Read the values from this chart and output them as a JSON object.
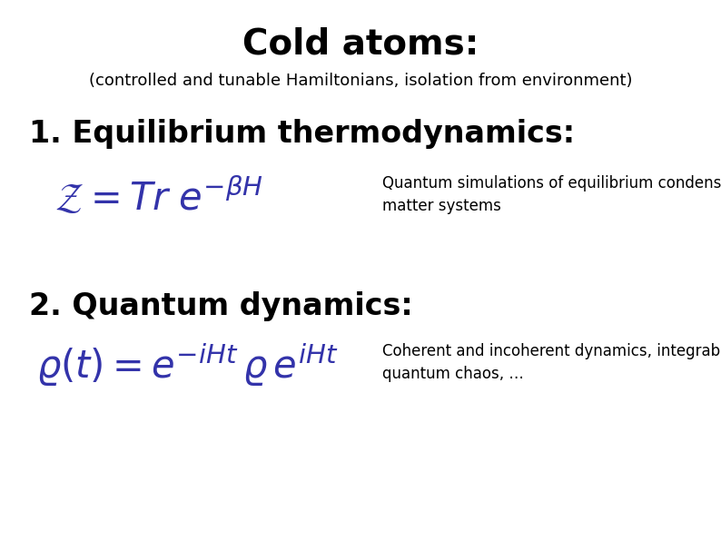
{
  "bg_color": "#ffffff",
  "title": "Cold atoms:",
  "subtitle": "(controlled and tunable Hamiltonians, isolation from environment)",
  "title_fontsize": 28,
  "subtitle_fontsize": 13,
  "title_color": "#000000",
  "subtitle_color": "#000000",
  "section1_heading": "1. Equilibrium thermodynamics:",
  "section1_heading_fontsize": 24,
  "section1_heading_color": "#000000",
  "section1_formula_color": "#3333aa",
  "section1_formula_fontsize": 30,
  "section1_note_line1": "Quantum simulations of equilibrium condensed",
  "section1_note_line2": "matter systems",
  "section1_note_fontsize": 12,
  "section1_note_color": "#000000",
  "section2_heading": "2. Quantum dynamics:",
  "section2_heading_fontsize": 24,
  "section2_heading_color": "#000000",
  "section2_formula_color": "#3333aa",
  "section2_formula_fontsize": 30,
  "section2_note_line1": "Coherent and incoherent dynamics, integrability,",
  "section2_note_line2": "quantum chaos, …",
  "section2_note_fontsize": 12,
  "section2_note_color": "#000000"
}
